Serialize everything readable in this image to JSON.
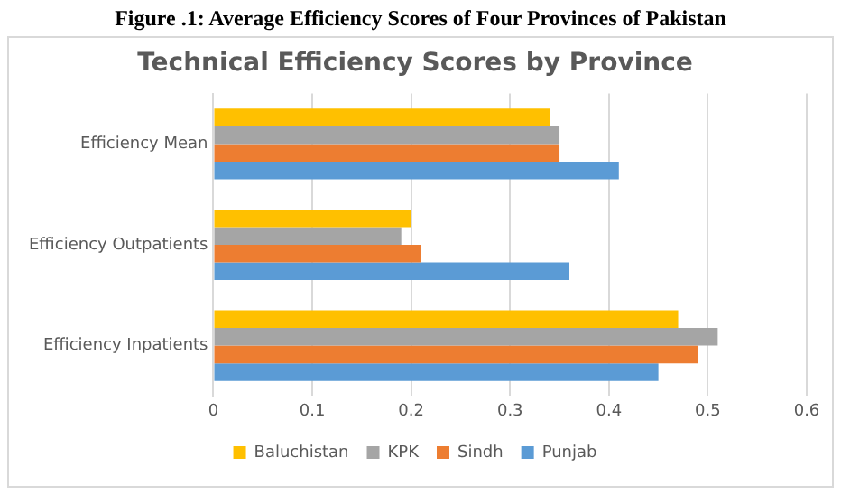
{
  "chart_data": {
    "type": "bar",
    "orientation": "horizontal",
    "title": "Figure .1: Average Efficiency Scores of Four Provinces of Pakistan",
    "subtitle": "Technical Efficiency Scores by Province",
    "categories": [
      "Efficiency Mean",
      "Efficiency Outpatients",
      "Efficiency Inpatients"
    ],
    "series": [
      {
        "name": "Baluchistan",
        "color": "#ffc000",
        "values": [
          0.34,
          0.2,
          0.47
        ]
      },
      {
        "name": "KPK",
        "color": "#a5a5a5",
        "values": [
          0.35,
          0.19,
          0.51
        ]
      },
      {
        "name": "Sindh",
        "color": "#ed7d31",
        "values": [
          0.35,
          0.21,
          0.49
        ]
      },
      {
        "name": "Punjab",
        "color": "#5b9bd5",
        "values": [
          0.41,
          0.36,
          0.45
        ]
      }
    ],
    "xlim": [
      0,
      0.6
    ],
    "xticks": [
      0,
      0.1,
      0.2,
      0.3,
      0.4,
      0.5,
      0.6
    ],
    "grid": "x",
    "legend": "bottom"
  }
}
